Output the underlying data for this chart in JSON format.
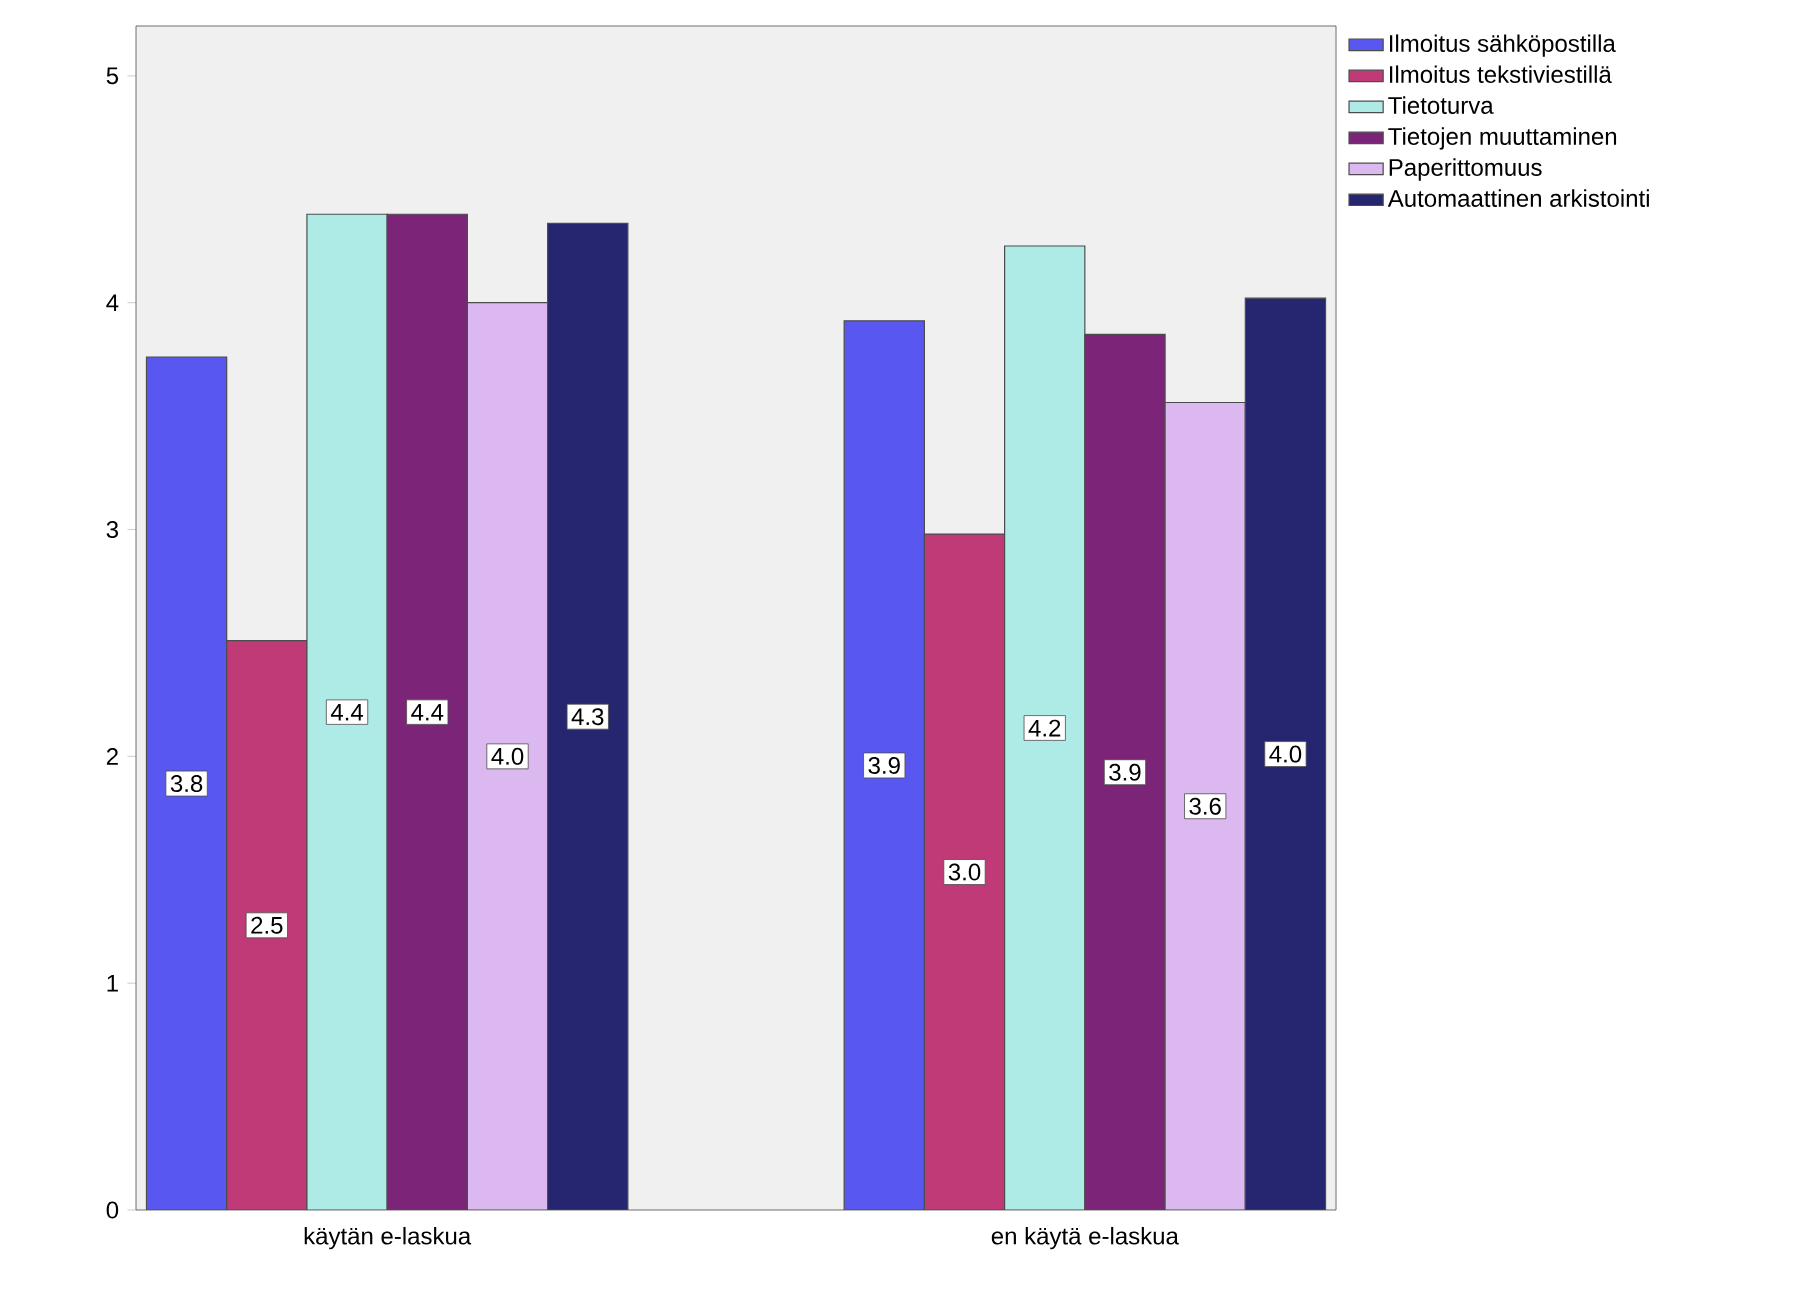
{
  "chart_data": {
    "type": "bar",
    "categories": [
      "käytän e-laskua",
      "en käytä e-laskua"
    ],
    "ylim": [
      0,
      5.22
    ],
    "yticks": [
      0,
      1,
      2,
      3,
      4,
      5
    ],
    "legend": "right",
    "series": [
      {
        "name": "Ilmoitus sähköpostilla",
        "color": "#5858f0",
        "values": [
          3.76,
          3.92
        ],
        "value_labels": [
          "3.8",
          "3.9"
        ]
      },
      {
        "name": "Ilmoitus tekstiviestillä",
        "color": "#c03a78",
        "values": [
          2.51,
          2.98
        ],
        "value_labels": [
          "2.5",
          "3.0"
        ]
      },
      {
        "name": "Tietoturva",
        "color": "#aeeae6",
        "values": [
          4.39,
          4.25
        ],
        "value_labels": [
          "4.4",
          "4.2"
        ]
      },
      {
        "name": "Tietojen muuttaminen",
        "color": "#7b2478",
        "values": [
          4.39,
          3.86
        ],
        "value_labels": [
          "4.4",
          "3.9"
        ]
      },
      {
        "name": "Paperittomuus",
        "color": "#dcb8f0",
        "values": [
          4.0,
          3.56
        ],
        "value_labels": [
          "4.0",
          "3.6"
        ]
      },
      {
        "name": "Automaattinen arkistointi",
        "color": "#262670",
        "values": [
          4.35,
          4.02
        ],
        "value_labels": [
          "4.3",
          "4.0"
        ]
      }
    ]
  }
}
